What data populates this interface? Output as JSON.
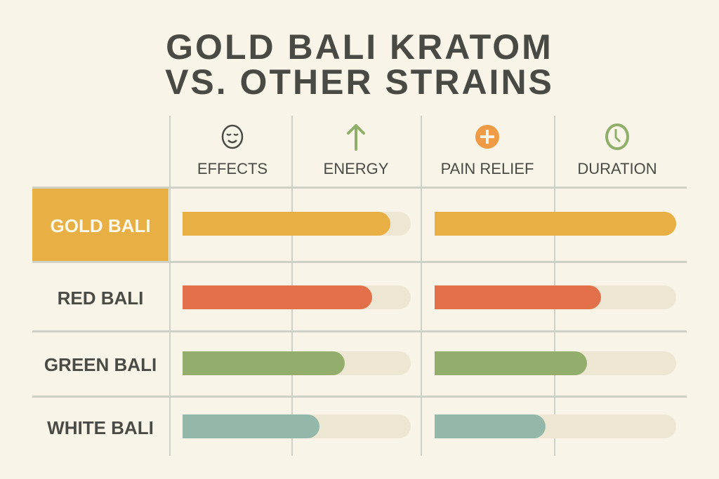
{
  "chart_data": {
    "type": "bar",
    "title": [
      "GOLD BALI KRATOM",
      "VS. OTHER STRAINS"
    ],
    "column_headers": [
      {
        "label": "EFFECTS",
        "icon": "smiley-face-icon",
        "color": "#4b4b45"
      },
      {
        "label": "ENERGY",
        "icon": "arrow-up-icon",
        "color": "#8fae6a"
      },
      {
        "label": "PAIN RELIEF",
        "icon": "plus-circle-icon",
        "color": "#ef9a45"
      },
      {
        "label": "DURATION",
        "icon": "clock-icon",
        "color": "#8fae6a"
      }
    ],
    "categories": [
      "GOLD BALI",
      "RED BALI",
      "GREEN BALI",
      "WHITE BALI"
    ],
    "category_colors": [
      "#e8b044",
      "#e2704a",
      "#93ad6c",
      "#93b8aa"
    ],
    "highlighted_category": "GOLD BALI",
    "track_color": "#ede6d3",
    "xlim": [
      0,
      1
    ],
    "series": [
      {
        "values": [
          0.91,
          0.83,
          0.71,
          0.6
        ]
      },
      {
        "values": [
          1.0,
          0.69,
          0.63,
          0.46
        ]
      }
    ]
  }
}
